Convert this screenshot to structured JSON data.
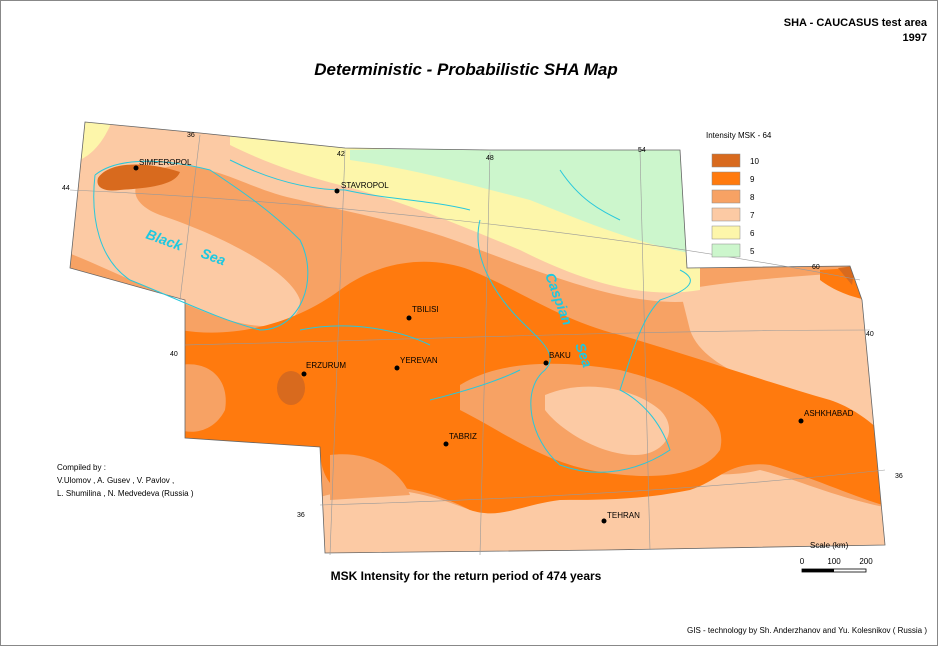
{
  "header": {
    "area": "SHA - CAUCASUS test area",
    "year": "1997"
  },
  "title": "Deterministic - Probabilistic SHA Map",
  "legend": {
    "title": "Intensity MSK - 64",
    "items": [
      {
        "label": "10",
        "color": "#d86a1e"
      },
      {
        "label": "9",
        "color": "#ff7a0e"
      },
      {
        "label": "8",
        "color": "#f7a264"
      },
      {
        "label": "7",
        "color": "#fccaa4"
      },
      {
        "label": "6",
        "color": "#fdf6aa"
      },
      {
        "label": "5",
        "color": "#ccf6cc"
      }
    ]
  },
  "cities": [
    "SIMFEROPOL",
    "STAVROPOL",
    "TBILISI",
    "ERZURUM",
    "YEREVAN",
    "BAKU",
    "ASHKHABAD",
    "TABRIZ",
    "TEHRAN"
  ],
  "seas": [
    "Black",
    "Sea",
    "Caspian",
    "Sea"
  ],
  "graticule": [
    "36",
    "42",
    "48",
    "54",
    "60",
    "44",
    "40",
    "40",
    "36",
    "36"
  ],
  "compiled": [
    "Compiled by :",
    "V.Ulomov , A. Gusev , V. Pavlov ,",
    "L. Shumilina , N. Medvedeva (Russia )"
  ],
  "subtitle": "MSK Intensity for the return period of 474 years",
  "scale": {
    "title": "Scale (km)",
    "ticks": [
      "0",
      "100",
      "200"
    ]
  },
  "footer": "GIS - technology by Sh. Anderzhanov and Yu. Kolesnikov ( Russia )"
}
